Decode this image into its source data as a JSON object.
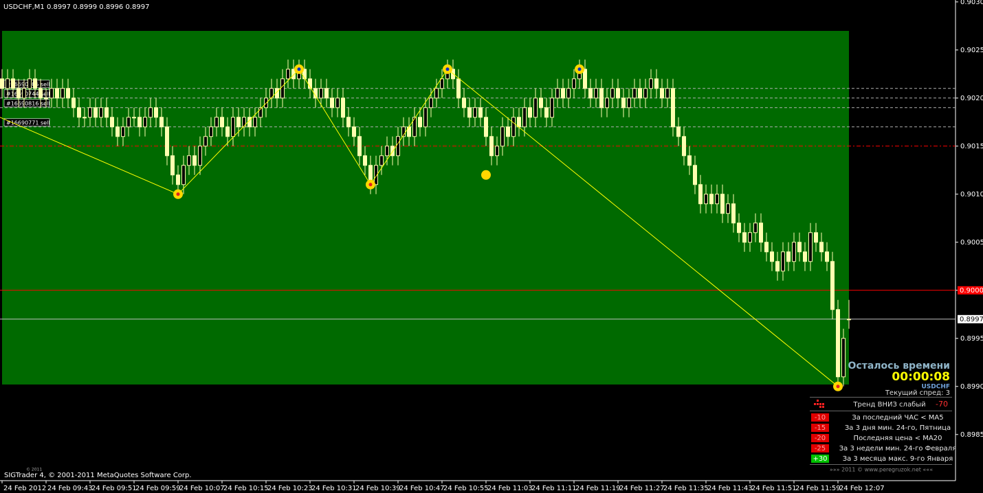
{
  "chart_data": {
    "type": "candlestick",
    "title": "USDCHF,M1  0.8997 0.8999 0.8996 0.8997",
    "candle_up_color": "#000000",
    "candle_down_color": "#ffffb0",
    "wick_color": "#ffffb0",
    "xlim": [
      -0.375,
      173.375
    ],
    "ylim": [
      0.89802,
      0.90302
    ],
    "xticks": [
      {
        "value": 0,
        "label": "24 Feb 2012"
      },
      {
        "value": 8,
        "label": "24 Feb 09:43"
      },
      {
        "value": 16,
        "label": "24 Feb 09:51"
      },
      {
        "value": 24,
        "label": "24 Feb 09:59"
      },
      {
        "value": 32,
        "label": "24 Feb 10:07"
      },
      {
        "value": 40,
        "label": "24 Feb 10:15"
      },
      {
        "value": 48,
        "label": "24 Feb 10:23"
      },
      {
        "value": 56,
        "label": "24 Feb 10:31"
      },
      {
        "value": 64,
        "label": "24 Feb 10:39"
      },
      {
        "value": 72,
        "label": "24 Feb 10:47"
      },
      {
        "value": 80,
        "label": "24 Feb 10:55"
      },
      {
        "value": 88,
        "label": "24 Feb 11:03"
      },
      {
        "value": 96,
        "label": "24 Feb 11:11"
      },
      {
        "value": 104,
        "label": "24 Feb 11:19"
      },
      {
        "value": 112,
        "label": "24 Feb 11:27"
      },
      {
        "value": 120,
        "label": "24 Feb 11:35"
      },
      {
        "value": 128,
        "label": "24 Feb 11:43"
      },
      {
        "value": 136,
        "label": "24 Feb 11:51"
      },
      {
        "value": 144,
        "label": "24 Feb 11:59"
      },
      {
        "value": 152,
        "label": "24 Feb 12:07"
      }
    ],
    "yticks": [
      {
        "value": 0.903,
        "label": "0.9030"
      },
      0.9025,
      {
        "value": 0.902,
        "label": "0.9020"
      },
      0.9015,
      {
        "value": 0.901,
        "label": "0.9010"
      },
      0.9005,
      {
        "value": 0.9,
        "label": "0.9000"
      },
      0.8995,
      {
        "value": 0.899,
        "label": "0.8990"
      },
      0.8985
    ],
    "ohlc": [
      [
        0.9022,
        0.9023,
        0.902,
        0.9021
      ],
      [
        0.9021,
        0.9023,
        0.902,
        0.9022
      ],
      [
        0.9022,
        0.9023,
        0.902,
        0.9021
      ],
      [
        0.9021,
        0.9022,
        0.9019,
        0.902
      ],
      [
        0.902,
        0.9022,
        0.9019,
        0.9021
      ],
      [
        0.9021,
        0.9023,
        0.902,
        0.9022
      ],
      [
        0.9022,
        0.9023,
        0.902,
        0.9021
      ],
      [
        0.9021,
        0.9022,
        0.9019,
        0.902
      ],
      [
        0.902,
        0.9021,
        0.9019,
        0.902
      ],
      [
        0.902,
        0.9022,
        0.9019,
        0.9021
      ],
      [
        0.9021,
        0.9022,
        0.9019,
        0.902
      ],
      [
        0.902,
        0.9022,
        0.9019,
        0.9021
      ],
      [
        0.9021,
        0.9022,
        0.9019,
        0.902
      ],
      [
        0.902,
        0.9021,
        0.9018,
        0.9019
      ],
      [
        0.9019,
        0.902,
        0.9017,
        0.9018
      ],
      [
        0.9018,
        0.9019,
        0.9017,
        0.9018
      ],
      [
        0.9018,
        0.902,
        0.9017,
        0.9019
      ],
      [
        0.9019,
        0.902,
        0.9017,
        0.9018
      ],
      [
        0.9018,
        0.902,
        0.9017,
        0.9019
      ],
      [
        0.9019,
        0.902,
        0.9017,
        0.9018
      ],
      [
        0.9018,
        0.9019,
        0.9016,
        0.9017
      ],
      [
        0.9017,
        0.9018,
        0.9015,
        0.9016
      ],
      [
        0.9016,
        0.9018,
        0.9015,
        0.9017
      ],
      [
        0.9017,
        0.9019,
        0.9016,
        0.9018
      ],
      [
        0.9018,
        0.9019,
        0.9017,
        0.9018
      ],
      [
        0.9018,
        0.9019,
        0.9016,
        0.9017
      ],
      [
        0.9017,
        0.9019,
        0.9016,
        0.9018
      ],
      [
        0.9018,
        0.902,
        0.9017,
        0.9019
      ],
      [
        0.9019,
        0.902,
        0.9017,
        0.9018
      ],
      [
        0.9018,
        0.9019,
        0.9016,
        0.9017
      ],
      [
        0.9017,
        0.9018,
        0.9013,
        0.9014
      ],
      [
        0.9014,
        0.9015,
        0.9011,
        0.9012
      ],
      [
        0.9012,
        0.9013,
        0.901,
        0.9011
      ],
      [
        0.9011,
        0.9014,
        0.901,
        0.9013
      ],
      [
        0.9013,
        0.9015,
        0.9012,
        0.9014
      ],
      [
        0.9014,
        0.9015,
        0.9012,
        0.9013
      ],
      [
        0.9013,
        0.9016,
        0.9012,
        0.9015
      ],
      [
        0.9015,
        0.9017,
        0.9014,
        0.9016
      ],
      [
        0.9016,
        0.9018,
        0.9015,
        0.9017
      ],
      [
        0.9017,
        0.9019,
        0.9016,
        0.9018
      ],
      [
        0.9018,
        0.9019,
        0.9016,
        0.9017
      ],
      [
        0.9017,
        0.9018,
        0.9015,
        0.9016
      ],
      [
        0.9016,
        0.9019,
        0.9015,
        0.9018
      ],
      [
        0.9018,
        0.9019,
        0.9016,
        0.9017
      ],
      [
        0.9017,
        0.9019,
        0.9016,
        0.9018
      ],
      [
        0.9018,
        0.9019,
        0.9016,
        0.9017
      ],
      [
        0.9017,
        0.9019,
        0.9016,
        0.9018
      ],
      [
        0.9018,
        0.902,
        0.9017,
        0.9019
      ],
      [
        0.9019,
        0.9021,
        0.9018,
        0.902
      ],
      [
        0.902,
        0.9022,
        0.9019,
        0.9021
      ],
      [
        0.9021,
        0.9022,
        0.9019,
        0.902
      ],
      [
        0.902,
        0.9023,
        0.9019,
        0.9022
      ],
      [
        0.9022,
        0.9024,
        0.9021,
        0.9023
      ],
      [
        0.9023,
        0.9024,
        0.9021,
        0.9022
      ],
      [
        0.9022,
        0.9024,
        0.9021,
        0.9023
      ],
      [
        0.9023,
        0.9024,
        0.9021,
        0.9022
      ],
      [
        0.9022,
        0.9023,
        0.902,
        0.9021
      ],
      [
        0.9021,
        0.9022,
        0.9019,
        0.902
      ],
      [
        0.902,
        0.9022,
        0.9019,
        0.9021
      ],
      [
        0.9021,
        0.9022,
        0.9019,
        0.902
      ],
      [
        0.902,
        0.9021,
        0.9018,
        0.9019
      ],
      [
        0.9019,
        0.9021,
        0.9018,
        0.902
      ],
      [
        0.902,
        0.9021,
        0.9017,
        0.9018
      ],
      [
        0.9018,
        0.9019,
        0.9016,
        0.9017
      ],
      [
        0.9017,
        0.9018,
        0.9015,
        0.9016
      ],
      [
        0.9016,
        0.9017,
        0.9013,
        0.9014
      ],
      [
        0.9014,
        0.9015,
        0.9012,
        0.9013
      ],
      [
        0.9013,
        0.9014,
        0.901,
        0.9011
      ],
      [
        0.9011,
        0.9014,
        0.901,
        0.9013
      ],
      [
        0.9013,
        0.9015,
        0.9012,
        0.9014
      ],
      [
        0.9014,
        0.9016,
        0.9013,
        0.9015
      ],
      [
        0.9015,
        0.9016,
        0.9013,
        0.9014
      ],
      [
        0.9014,
        0.9017,
        0.9013,
        0.9016
      ],
      [
        0.9016,
        0.9018,
        0.9015,
        0.9017
      ],
      [
        0.9017,
        0.9018,
        0.9015,
        0.9016
      ],
      [
        0.9016,
        0.9019,
        0.9015,
        0.9018
      ],
      [
        0.9018,
        0.9019,
        0.9016,
        0.9017
      ],
      [
        0.9017,
        0.902,
        0.9016,
        0.9019
      ],
      [
        0.9019,
        0.9021,
        0.9018,
        0.902
      ],
      [
        0.902,
        0.9022,
        0.9019,
        0.9021
      ],
      [
        0.9021,
        0.9023,
        0.902,
        0.9022
      ],
      [
        0.9022,
        0.9024,
        0.9021,
        0.9023
      ],
      [
        0.9023,
        0.9024,
        0.9021,
        0.9022
      ],
      [
        0.9022,
        0.9023,
        0.9019,
        0.902
      ],
      [
        0.902,
        0.9021,
        0.9018,
        0.9019
      ],
      [
        0.9019,
        0.902,
        0.9017,
        0.9018
      ],
      [
        0.9018,
        0.902,
        0.9017,
        0.9019
      ],
      [
        0.9019,
        0.902,
        0.9017,
        0.9018
      ],
      [
        0.9018,
        0.9019,
        0.9015,
        0.9016
      ],
      [
        0.9016,
        0.9017,
        0.9013,
        0.9014
      ],
      [
        0.9014,
        0.9016,
        0.9013,
        0.9015
      ],
      [
        0.9015,
        0.9018,
        0.9014,
        0.9017
      ],
      [
        0.9017,
        0.9018,
        0.9015,
        0.9016
      ],
      [
        0.9016,
        0.9019,
        0.9015,
        0.9018
      ],
      [
        0.9018,
        0.9019,
        0.9016,
        0.9017
      ],
      [
        0.9017,
        0.902,
        0.9016,
        0.9019
      ],
      [
        0.9019,
        0.902,
        0.9017,
        0.9018
      ],
      [
        0.9018,
        0.9021,
        0.9017,
        0.902
      ],
      [
        0.902,
        0.9021,
        0.9018,
        0.9019
      ],
      [
        0.9019,
        0.902,
        0.9017,
        0.9018
      ],
      [
        0.9018,
        0.9021,
        0.9017,
        0.902
      ],
      [
        0.902,
        0.9022,
        0.9019,
        0.9021
      ],
      [
        0.9021,
        0.9022,
        0.9019,
        0.902
      ],
      [
        0.902,
        0.9022,
        0.9019,
        0.9021
      ],
      [
        0.9021,
        0.9023,
        0.902,
        0.9022
      ],
      [
        0.9022,
        0.9024,
        0.9021,
        0.9023
      ],
      [
        0.9023,
        0.9024,
        0.902,
        0.9021
      ],
      [
        0.9021,
        0.9022,
        0.9019,
        0.902
      ],
      [
        0.902,
        0.9022,
        0.9019,
        0.9021
      ],
      [
        0.9021,
        0.9022,
        0.9018,
        0.9019
      ],
      [
        0.9019,
        0.9021,
        0.9018,
        0.902
      ],
      [
        0.902,
        0.9022,
        0.9019,
        0.9021
      ],
      [
        0.9021,
        0.9022,
        0.9019,
        0.902
      ],
      [
        0.902,
        0.9021,
        0.9018,
        0.9019
      ],
      [
        0.9019,
        0.9021,
        0.9018,
        0.902
      ],
      [
        0.902,
        0.9022,
        0.9019,
        0.9021
      ],
      [
        0.9021,
        0.9022,
        0.9019,
        0.902
      ],
      [
        0.902,
        0.9022,
        0.9019,
        0.9021
      ],
      [
        0.9021,
        0.9023,
        0.902,
        0.9022
      ],
      [
        0.9022,
        0.9023,
        0.902,
        0.9021
      ],
      [
        0.9021,
        0.9022,
        0.9019,
        0.902
      ],
      [
        0.902,
        0.9022,
        0.9019,
        0.9021
      ],
      [
        0.9021,
        0.9022,
        0.9016,
        0.9017
      ],
      [
        0.9017,
        0.9018,
        0.9015,
        0.9016
      ],
      [
        0.9016,
        0.9017,
        0.9013,
        0.9014
      ],
      [
        0.9014,
        0.9015,
        0.9012,
        0.9013
      ],
      [
        0.9013,
        0.9014,
        0.901,
        0.9011
      ],
      [
        0.9011,
        0.9012,
        0.9008,
        0.9009
      ],
      [
        0.9009,
        0.9011,
        0.9008,
        0.901
      ],
      [
        0.901,
        0.9011,
        0.9008,
        0.9009
      ],
      [
        0.9009,
        0.9011,
        0.9008,
        0.901
      ],
      [
        0.901,
        0.9011,
        0.9007,
        0.9008
      ],
      [
        0.9008,
        0.901,
        0.9007,
        0.9009
      ],
      [
        0.9009,
        0.901,
        0.9006,
        0.9007
      ],
      [
        0.9007,
        0.9008,
        0.9005,
        0.9006
      ],
      [
        0.9006,
        0.9007,
        0.9004,
        0.9005
      ],
      [
        0.9005,
        0.9007,
        0.9004,
        0.9006
      ],
      [
        0.9006,
        0.9008,
        0.9005,
        0.9007
      ],
      [
        0.9007,
        0.9008,
        0.9004,
        0.9005
      ],
      [
        0.9005,
        0.9006,
        0.9003,
        0.9004
      ],
      [
        0.9004,
        0.9005,
        0.9002,
        0.9003
      ],
      [
        0.9003,
        0.9004,
        0.9001,
        0.9002
      ],
      [
        0.9002,
        0.9005,
        0.9001,
        0.9004
      ],
      [
        0.9004,
        0.9005,
        0.9002,
        0.9003
      ],
      [
        0.9003,
        0.9006,
        0.9002,
        0.9005
      ],
      [
        0.9005,
        0.9006,
        0.9003,
        0.9004
      ],
      [
        0.9004,
        0.9005,
        0.9002,
        0.9003
      ],
      [
        0.9003,
        0.9007,
        0.9002,
        0.9006
      ],
      [
        0.9006,
        0.9007,
        0.9004,
        0.9005
      ],
      [
        0.9005,
        0.9006,
        0.9003,
        0.9004
      ],
      [
        0.9004,
        0.9005,
        0.9002,
        0.9003
      ],
      [
        0.9003,
        0.9004,
        0.8997,
        0.8998
      ],
      [
        0.8998,
        0.8999,
        0.899,
        0.8991
      ],
      [
        0.8991,
        0.8996,
        0.899,
        0.8995
      ],
      [
        0.8997,
        0.8999,
        0.8996,
        0.8997
      ]
    ],
    "levels": [
      {
        "label": "#16690705 sell",
        "value": 0.9021
      },
      {
        "label": "#16690744 sell",
        "value": 0.902
      },
      {
        "label": "#16690816 sell",
        "value": 0.9019
      },
      {
        "label": "#16690771 sell",
        "value": 0.9017
      }
    ],
    "lines": [
      {
        "value": 0.9015,
        "color": "#ff0000",
        "dash": "6 3 2 3"
      }
    ],
    "price_tags": [
      {
        "value": 0.9,
        "label": "0.9000",
        "color": "#ff0000"
      },
      {
        "value": 0.8997,
        "color": "#c0c0c0"
      }
    ],
    "zigzag": {
      "color": "#ffff00",
      "x": [
        -0.375,
        32,
        54,
        67,
        81,
        152
      ],
      "y": [
        0.9018,
        0.901,
        0.9023,
        0.9011,
        0.9023,
        0.899
      ]
    },
    "swing_points": {
      "x": [
        32,
        54,
        67,
        81,
        105,
        152
      ],
      "y": [
        0.901,
        0.9023,
        0.9011,
        0.9023,
        0.9023,
        0.899
      ]
    },
    "signal_point": {
      "x": 88,
      "y": 0.9012
    }
  },
  "panel": {
    "timer_title": "Осталось времени",
    "timer": "00:00:08",
    "symbol": "USDCHF",
    "spread": "Текущий спред: 3",
    "trend": "Тренд ВНИЗ слабый",
    "trend_score": "-70",
    "rows": [
      [
        "-10",
        "За последний ЧАС < MA5"
      ],
      [
        "-15",
        "За 3 дня мин. 24-го, Пятница"
      ],
      [
        "-20",
        "Последняя цена < MA20"
      ],
      [
        "-25",
        "За 3 недели мин. 24-го Февраля"
      ],
      [
        "+30",
        "За 3 месяца макс. 9-го Января"
      ]
    ],
    "footer": "»»»    2011 © www.peregruzok.net    «««"
  },
  "footer": {
    "copyright_small": "© 2011",
    "copyright": "SIGTrader 4, © 2001-2011 MetaQuotes Software Corp."
  }
}
